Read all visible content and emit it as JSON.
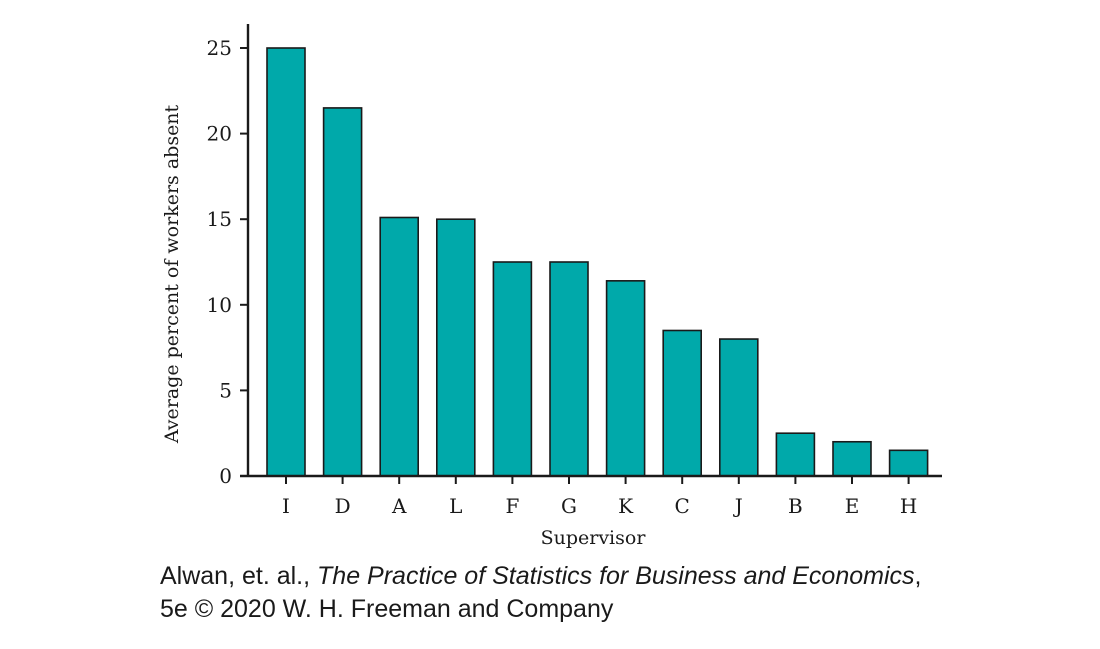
{
  "colors": {
    "bar_fill": "#00A9AA",
    "bar_stroke": "#1a1a1a",
    "axis": "#1a1a1a",
    "text": "#1a1a1a",
    "background": "#ffffff"
  },
  "caption": {
    "authors": "Alwan, et. al., ",
    "book_title": "The Practice of Statistics for Business and Economics",
    "title_suffix": ",",
    "line2": "5e © 2020 W. H. Freeman and Company"
  },
  "chart_data": {
    "type": "bar",
    "title": "",
    "xlabel": "Supervisor",
    "ylabel": "Average percent of workers absent",
    "categories": [
      "I",
      "D",
      "A",
      "L",
      "F",
      "G",
      "K",
      "C",
      "J",
      "B",
      "E",
      "H"
    ],
    "values": [
      25,
      21.5,
      15.1,
      15.0,
      12.5,
      12.5,
      11.4,
      8.5,
      8.0,
      2.5,
      2.0,
      1.5
    ],
    "ylim": [
      0,
      26
    ],
    "yticks": [
      0,
      5,
      10,
      15,
      20,
      25
    ],
    "grid": false,
    "legend": "none"
  }
}
